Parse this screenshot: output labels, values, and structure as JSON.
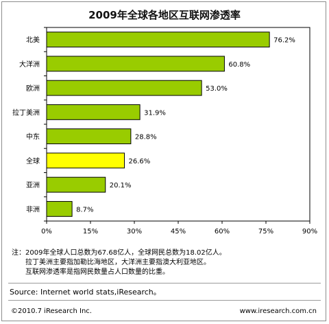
{
  "chart_data": {
    "type": "bar",
    "orientation": "horizontal",
    "title": "2009年全球各地区互联网渗透率",
    "categories": [
      "北美",
      "大洋洲",
      "欧洲",
      "拉丁美洲",
      "中东",
      "全球",
      "亚洲",
      "非洲"
    ],
    "values": [
      76.2,
      60.8,
      53.0,
      31.9,
      28.8,
      26.6,
      20.1,
      8.7
    ],
    "value_labels": [
      "76.2%",
      "60.8%",
      "53.0%",
      "31.9%",
      "28.8%",
      "26.6%",
      "20.1%",
      "8.7%"
    ],
    "xlim": [
      0,
      90
    ],
    "x_ticks": [
      "0%",
      "15%",
      "30%",
      "45%",
      "60%",
      "75%",
      "90%"
    ],
    "grid": false,
    "bar_color": "#99cc00",
    "highlight_category": "全球",
    "highlight_color": "#ffff00",
    "notes_prefix": "注：",
    "notes": [
      "2009年全球人口总数为67.68亿人，全球网民总数为18.02亿人。",
      "拉丁美洲主要指加勒比海地区，大洋洲主要指澳大利亚地区。",
      "互联网渗透率是指网民数量占人口数量的比重。"
    ],
    "source": "Source: Internet world stats,iResearch。",
    "footer_left": "©2010.7 iResearch Inc.",
    "footer_right": "www.iresearch.com.cn"
  }
}
